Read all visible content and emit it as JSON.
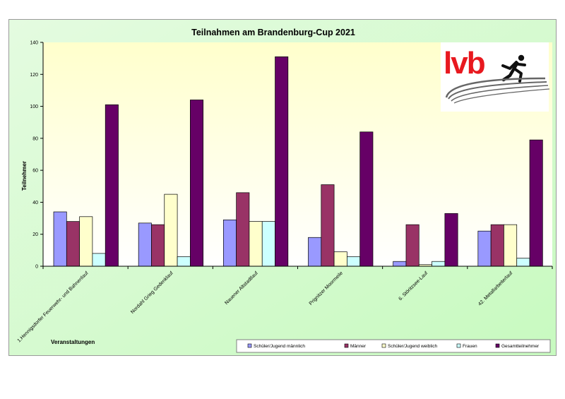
{
  "chart_data": {
    "type": "bar",
    "title": "Teilnahmen am Brandenburg-Cup 2021",
    "xlabel": "Veranstaltungen",
    "ylabel": "Teilnehmer",
    "ylim": [
      0,
      140
    ],
    "ytick_step": 20,
    "grid": false,
    "legend_position": "bottom-right",
    "categories": [
      "1.Hennigsdorfer Feuerwehr- und Bahnenlauf",
      "Nordahl Grieg Gedenklauf",
      "Nauener Altstadtlauf",
      "Prignitzer Moormeile",
      "6. Störitzsee-Lauf",
      "42. Metallarbeiterlauf"
    ],
    "series": [
      {
        "name": "Schüler/Jugend männlich",
        "color": "#9999ff",
        "values": [
          34,
          27,
          29,
          18,
          3,
          22
        ]
      },
      {
        "name": "Männer",
        "color": "#993366",
        "values": [
          28,
          26,
          46,
          51,
          26,
          26
        ]
      },
      {
        "name": "Schüler/Jugend weiblich",
        "color": "#ffffcc",
        "values": [
          31,
          45,
          28,
          9,
          1,
          26
        ]
      },
      {
        "name": "Frauen",
        "color": "#ccffff",
        "values": [
          8,
          6,
          28,
          6,
          3,
          5
        ]
      },
      {
        "name": "Gesamtteilnehmer",
        "color": "#660066",
        "values": [
          101,
          104,
          131,
          84,
          33,
          79
        ]
      }
    ]
  },
  "logo": {
    "text": "lvb",
    "color": "#e8191f",
    "figure_color": "#111111"
  },
  "colors": {
    "frame_background": "#ccffcc",
    "plot_background_top": "#ffffcc",
    "plot_background_bottom": "#ffffff"
  }
}
